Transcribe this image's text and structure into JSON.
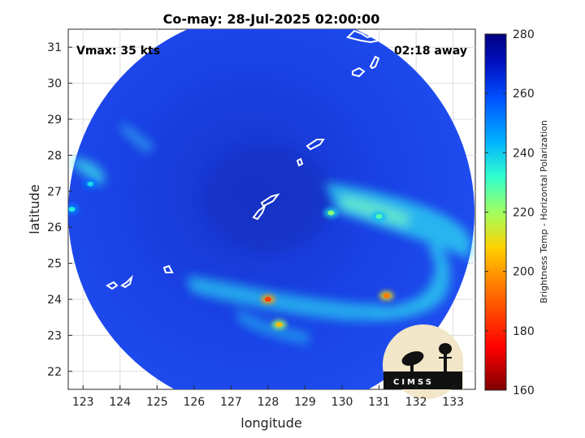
{
  "chart_data": {
    "type": "heatmap",
    "title": "Co-may: 28-Jul-2025 02:00:00",
    "xlabel": "longitude",
    "ylabel": "latitude",
    "xlim": [
      122.6,
      133.6
    ],
    "ylim": [
      21.5,
      31.5
    ],
    "xticks": [
      "123",
      "124",
      "125",
      "126",
      "127",
      "128",
      "129",
      "130",
      "131",
      "132",
      "133"
    ],
    "yticks": [
      "22",
      "23",
      "24",
      "25",
      "26",
      "27",
      "28",
      "29",
      "30",
      "31"
    ],
    "grid": true,
    "annotations": {
      "vmax": "Vmax: 35 kts",
      "time_offset": "02:18 away"
    },
    "colorbar": {
      "label": "Brightness Temp - Horizontal Polarization",
      "range": [
        160,
        280
      ],
      "ticks": [
        "280",
        "260",
        "240",
        "220",
        "200",
        "180",
        "160"
      ],
      "colormap": "jet"
    },
    "storm_center": [
      128.0,
      26.4
    ],
    "rainband_features": [
      {
        "lon": 129.7,
        "lat": 26.4,
        "tb": 222
      },
      {
        "lon": 131.0,
        "lat": 26.3,
        "tb": 228
      },
      {
        "lon": 131.2,
        "lat": 24.1,
        "tb": 195
      },
      {
        "lon": 128.0,
        "lat": 24.0,
        "tb": 185
      },
      {
        "lon": 128.3,
        "lat": 23.3,
        "tb": 205
      },
      {
        "lon": 123.2,
        "lat": 27.2,
        "tb": 238
      },
      {
        "lon": 122.7,
        "lat": 26.5,
        "tb": 235
      }
    ]
  },
  "colors": {
    "background_tb": "#1a3fe8",
    "eye_region": "#1530c8",
    "coastline": "#ffffff",
    "grid": "#b0b0b0"
  },
  "logo": {
    "text": "CIMSS"
  }
}
